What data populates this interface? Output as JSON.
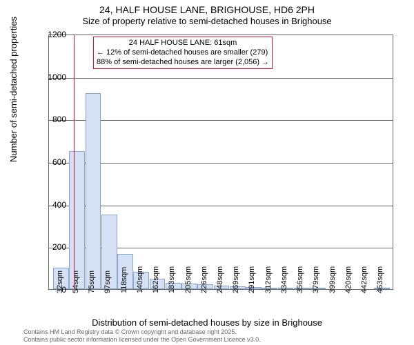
{
  "title": {
    "main": "24, HALF HOUSE LANE, BRIGHOUSE, HD6 2PH",
    "sub": "Size of property relative to semi-detached houses in Brighouse"
  },
  "chart": {
    "type": "histogram",
    "ylabel": "Number of semi-detached properties",
    "xlabel": "Distribution of semi-detached houses by size in Brighouse",
    "ylim": [
      0,
      1200
    ],
    "ytick_step": 200,
    "yticks": [
      0,
      200,
      400,
      600,
      800,
      1000,
      1200
    ],
    "xtick_labels": [
      "32sqm",
      "54sqm",
      "75sqm",
      "97sqm",
      "118sqm",
      "140sqm",
      "162sqm",
      "183sqm",
      "205sqm",
      "226sqm",
      "248sqm",
      "269sqm",
      "291sqm",
      "312sqm",
      "334sqm",
      "356sqm",
      "379sqm",
      "399sqm",
      "420sqm",
      "442sqm",
      "463sqm"
    ],
    "bar_values": [
      100,
      650,
      920,
      350,
      165,
      80,
      50,
      30,
      25,
      22,
      15,
      12,
      10,
      6,
      8,
      2,
      2,
      0,
      0,
      0,
      2
    ],
    "bar_color": "#d4e1f5",
    "bar_border_color": "#8aa5d1",
    "grid_color": "#666666",
    "background_color": "#ffffff",
    "reference_line": {
      "value_sqm": 61,
      "bin_index": 1.3,
      "color": "#d9142c"
    },
    "annotation": {
      "lines": [
        "24 HALF HOUSE LANE: 61sqm",
        "← 12% of semi-detached houses are smaller (279)",
        "88% of semi-detached houses are larger (2,056) →"
      ],
      "border_color": "#d9142c",
      "background_color": "#ffffff",
      "fontsize": 11
    },
    "title_fontsize": 14,
    "label_fontsize": 13,
    "tick_fontsize": 12
  },
  "footer": {
    "line1": "Contains HM Land Registry data © Crown copyright and database right 2025.",
    "line2": "Contains public sector information licensed under the Open Government Licence v3.0."
  }
}
